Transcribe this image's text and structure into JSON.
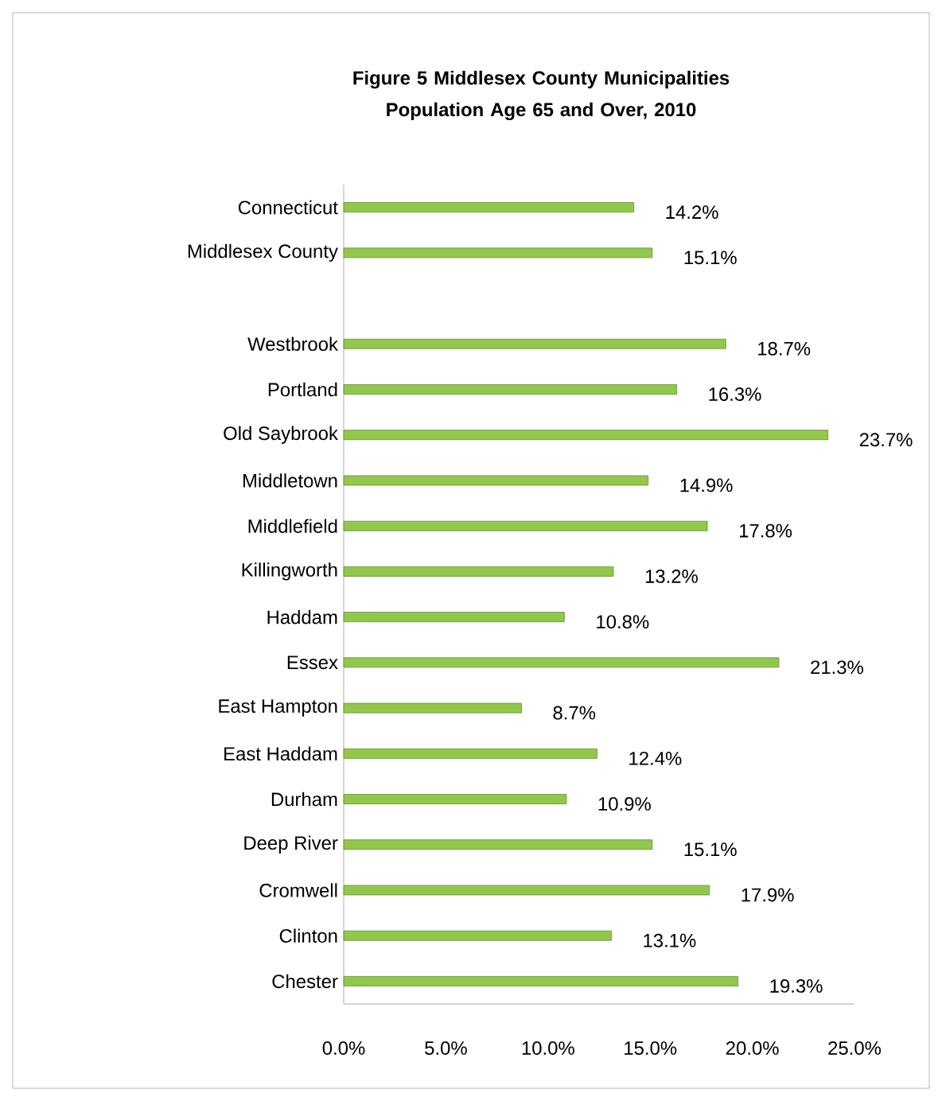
{
  "chart_data": {
    "type": "bar",
    "orientation": "horizontal",
    "title": "Figure 5  Middlesex County Municipalities Population Age 65 and Over, 2010",
    "categories": [
      "Connecticut",
      "Middlesex County",
      null,
      "Westbrook",
      "Portland",
      "Old Saybrook",
      "Middletown",
      "Middlefield",
      "Killingworth",
      "Haddam",
      "Essex",
      "East Hampton",
      "East Haddam",
      "Durham",
      "Deep River",
      "Cromwell",
      "Clinton",
      "Chester"
    ],
    "values": [
      14.2,
      15.1,
      null,
      18.7,
      16.3,
      23.7,
      14.9,
      17.8,
      13.2,
      10.8,
      21.3,
      8.7,
      12.4,
      10.9,
      15.1,
      17.9,
      13.1,
      19.3
    ],
    "value_labels": [
      "14.2%",
      "15.1%",
      null,
      "18.7%",
      "16.3%",
      "23.7%",
      "14.9%",
      "17.8%",
      "13.2%",
      "10.8%",
      "21.3%",
      "8.7%",
      "12.4%",
      "10.9%",
      "15.1%",
      "17.9%",
      "13.1%",
      "19.3%"
    ],
    "color": "#92c84a",
    "xlim": [
      0,
      25
    ],
    "xticks": [
      {
        "value": 0,
        "label": "0.0%"
      },
      {
        "value": 5,
        "label": "5.0%"
      },
      {
        "value": 10,
        "label": "10.0%"
      },
      {
        "value": 15,
        "label": "15.0%"
      },
      {
        "value": 20,
        "label": "20.0%"
      },
      {
        "value": 25,
        "label": "25.0%"
      }
    ]
  }
}
